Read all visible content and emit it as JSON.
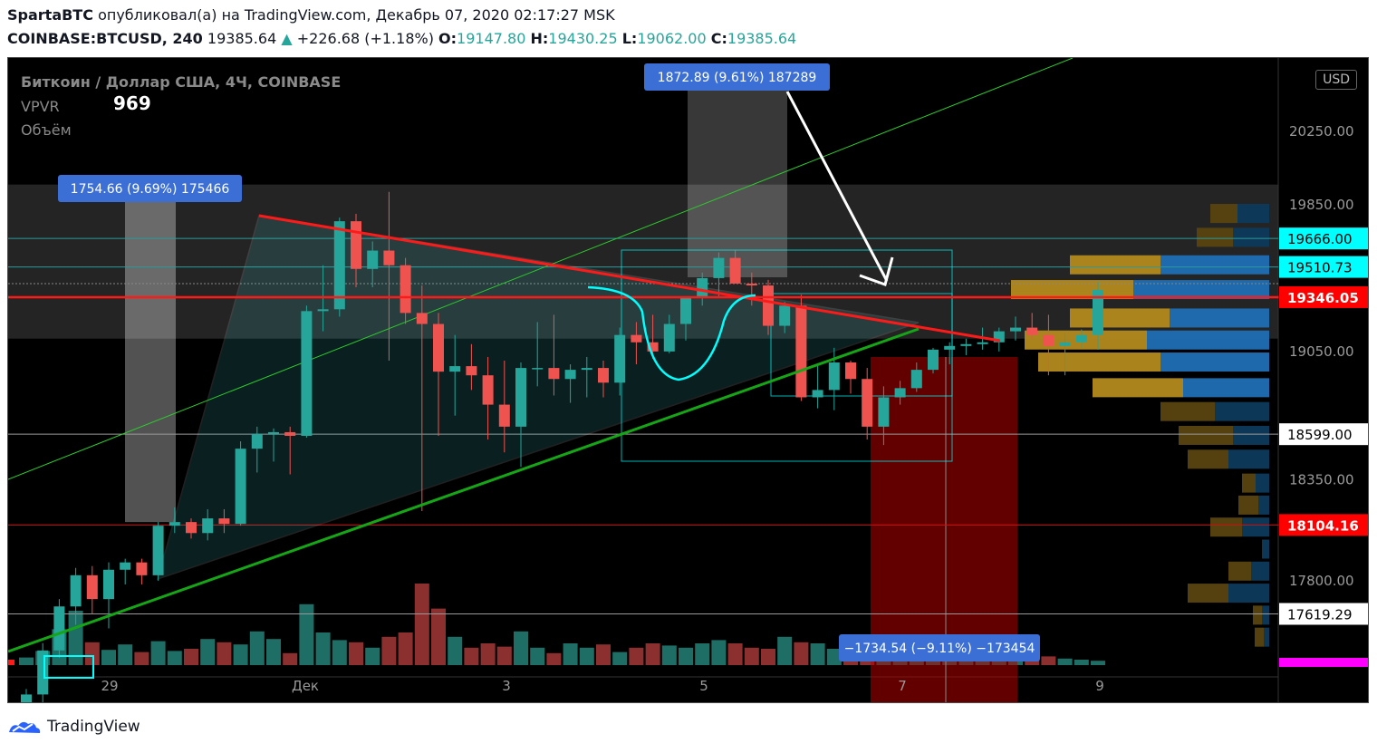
{
  "header": {
    "author": "SpartaBTC",
    "published_text": "опубликовал(а) на TradingView.com, Декабрь 07, 2020 02:17:27 MSK",
    "symbol": "COINBASE:BTCUSD, 240",
    "last": "19385.64",
    "change": "+226.68 (+1.18%)",
    "o_label": "O:",
    "o": "19147.80",
    "h_label": "H:",
    "h": "19430.25",
    "l_label": "L:",
    "l": "19062.00",
    "c_label": "C:",
    "c": "19385.64"
  },
  "legend": {
    "title": "Биткоин / Доллар США, 4Ч, COINBASE",
    "vpvr": "VPVR",
    "volume_label": "Объём",
    "volume_value": "969"
  },
  "currency": "USD",
  "footer": {
    "brand": "TradingView"
  },
  "colors": {
    "up": "#26a69a",
    "down": "#ef5350",
    "vol_up": "#1e6e66",
    "vol_down": "#8b2f2f",
    "resistance": "#ff1a1a",
    "support": "#16a516",
    "channel": "#2ecc2e",
    "measure_box": "#3b6fd6",
    "highlight_price": "#ff0000",
    "magenta": "#ff00ff",
    "cyan": "#00ffff"
  },
  "chart_data": {
    "type": "candlestick",
    "symbol": "COINBASE:BTCUSD",
    "timeframe": "4H",
    "x_ticks": [
      "29",
      "Дек",
      "3",
      "5",
      "7",
      "9"
    ],
    "y_ticks": [
      "20250.00",
      "19850.00",
      "19050.00",
      "18350.00",
      "17800.00"
    ],
    "ylim": [
      17350,
      20650
    ],
    "price_labels": [
      {
        "text": "19666.00",
        "value": 19666,
        "style": "cyan"
      },
      {
        "text": "19510.73",
        "value": 19510.73,
        "style": "cyan"
      },
      {
        "text": "19346.05",
        "value": 19346.05,
        "style": "red"
      },
      {
        "text": "18599.00",
        "value": 18599,
        "style": "white"
      },
      {
        "text": "18104.16",
        "value": 18104.16,
        "style": "red"
      },
      {
        "text": "17619.29",
        "value": 17619.29,
        "style": "white"
      }
    ],
    "annotations": [
      {
        "text": "1754.66 (9.69%) 175466"
      },
      {
        "text": "1872.89 (9.61%) 187289"
      },
      {
        "text": "−1734.54 (−9.11%) −173454"
      }
    ],
    "candles": [
      {
        "o": 17110,
        "h": 17210,
        "l": 17050,
        "c": 17180
      },
      {
        "o": 17180,
        "h": 17460,
        "l": 17120,
        "c": 17420
      },
      {
        "o": 17420,
        "h": 17700,
        "l": 17380,
        "c": 17660
      },
      {
        "o": 17660,
        "h": 17870,
        "l": 17560,
        "c": 17830
      },
      {
        "o": 17830,
        "h": 17880,
        "l": 17620,
        "c": 17700
      },
      {
        "o": 17700,
        "h": 17900,
        "l": 17540,
        "c": 17860
      },
      {
        "o": 17860,
        "h": 17920,
        "l": 17780,
        "c": 17900
      },
      {
        "o": 17900,
        "h": 17920,
        "l": 17780,
        "c": 17830
      },
      {
        "o": 17830,
        "h": 18120,
        "l": 17800,
        "c": 18100
      },
      {
        "o": 18100,
        "h": 18200,
        "l": 18060,
        "c": 18120
      },
      {
        "o": 18120,
        "h": 18140,
        "l": 18030,
        "c": 18060
      },
      {
        "o": 18060,
        "h": 18190,
        "l": 18020,
        "c": 18140
      },
      {
        "o": 18140,
        "h": 18190,
        "l": 18060,
        "c": 18110
      },
      {
        "o": 18110,
        "h": 18560,
        "l": 18100,
        "c": 18520
      },
      {
        "o": 18520,
        "h": 18640,
        "l": 18390,
        "c": 18600
      },
      {
        "o": 18600,
        "h": 18630,
        "l": 18450,
        "c": 18610
      },
      {
        "o": 18610,
        "h": 18640,
        "l": 18380,
        "c": 18590
      },
      {
        "o": 18590,
        "h": 19300,
        "l": 18580,
        "c": 19270
      },
      {
        "o": 19270,
        "h": 19520,
        "l": 19160,
        "c": 19280
      },
      {
        "o": 19280,
        "h": 19780,
        "l": 19240,
        "c": 19760
      },
      {
        "o": 19760,
        "h": 19800,
        "l": 19400,
        "c": 19500
      },
      {
        "o": 19500,
        "h": 19650,
        "l": 19400,
        "c": 19600
      },
      {
        "o": 19600,
        "h": 19920,
        "l": 19000,
        "c": 19520
      },
      {
        "o": 19520,
        "h": 19560,
        "l": 19200,
        "c": 19260
      },
      {
        "o": 19260,
        "h": 19410,
        "l": 18180,
        "c": 19200
      },
      {
        "o": 19200,
        "h": 19260,
        "l": 18590,
        "c": 18940
      },
      {
        "o": 18940,
        "h": 19140,
        "l": 18700,
        "c": 18970
      },
      {
        "o": 18970,
        "h": 19090,
        "l": 18840,
        "c": 18920
      },
      {
        "o": 18920,
        "h": 19020,
        "l": 18570,
        "c": 18760
      },
      {
        "o": 18760,
        "h": 19000,
        "l": 18500,
        "c": 18640
      },
      {
        "o": 18640,
        "h": 18990,
        "l": 18420,
        "c": 18960
      },
      {
        "o": 18960,
        "h": 19210,
        "l": 18860,
        "c": 18960
      },
      {
        "o": 18960,
        "h": 19250,
        "l": 18810,
        "c": 18900
      },
      {
        "o": 18900,
        "h": 18980,
        "l": 18770,
        "c": 18950
      },
      {
        "o": 18950,
        "h": 19020,
        "l": 18800,
        "c": 18960
      },
      {
        "o": 18960,
        "h": 19000,
        "l": 18800,
        "c": 18880
      },
      {
        "o": 18880,
        "h": 19180,
        "l": 18810,
        "c": 19140
      },
      {
        "o": 19140,
        "h": 19210,
        "l": 18980,
        "c": 19100
      },
      {
        "o": 19100,
        "h": 19250,
        "l": 19010,
        "c": 19050
      },
      {
        "o": 19050,
        "h": 19250,
        "l": 19040,
        "c": 19200
      },
      {
        "o": 19200,
        "h": 19350,
        "l": 19110,
        "c": 19350
      },
      {
        "o": 19350,
        "h": 19480,
        "l": 19300,
        "c": 19450
      },
      {
        "o": 19450,
        "h": 19590,
        "l": 19350,
        "c": 19560
      },
      {
        "o": 19560,
        "h": 19600,
        "l": 19420,
        "c": 19420
      },
      {
        "o": 19420,
        "h": 19480,
        "l": 19300,
        "c": 19410
      },
      {
        "o": 19410,
        "h": 19440,
        "l": 19140,
        "c": 19190
      },
      {
        "o": 19190,
        "h": 19320,
        "l": 19150,
        "c": 19300
      },
      {
        "o": 19300,
        "h": 19360,
        "l": 18780,
        "c": 18800
      },
      {
        "o": 18800,
        "h": 18980,
        "l": 18740,
        "c": 18840
      },
      {
        "o": 18840,
        "h": 19070,
        "l": 18730,
        "c": 18990
      },
      {
        "o": 18990,
        "h": 19000,
        "l": 18820,
        "c": 18900
      },
      {
        "o": 18900,
        "h": 18960,
        "l": 18570,
        "c": 18640
      },
      {
        "o": 18640,
        "h": 18860,
        "l": 18540,
        "c": 18800
      },
      {
        "o": 18800,
        "h": 18890,
        "l": 18760,
        "c": 18850
      },
      {
        "o": 18850,
        "h": 18990,
        "l": 18830,
        "c": 18950
      },
      {
        "o": 18950,
        "h": 19070,
        "l": 18930,
        "c": 19060
      },
      {
        "o": 19060,
        "h": 19100,
        "l": 18980,
        "c": 19080
      },
      {
        "o": 19080,
        "h": 19120,
        "l": 19030,
        "c": 19090
      },
      {
        "o": 19090,
        "h": 19180,
        "l": 19060,
        "c": 19100
      },
      {
        "o": 19100,
        "h": 19180,
        "l": 19050,
        "c": 19160
      },
      {
        "o": 19160,
        "h": 19240,
        "l": 19110,
        "c": 19180
      },
      {
        "o": 19180,
        "h": 19260,
        "l": 19120,
        "c": 19140
      },
      {
        "o": 19140,
        "h": 19250,
        "l": 18920,
        "c": 19080
      },
      {
        "o": 19080,
        "h": 19150,
        "l": 18920,
        "c": 19100
      },
      {
        "o": 19100,
        "h": 19170,
        "l": 19070,
        "c": 19140
      },
      {
        "o": 19140,
        "h": 19430,
        "l": 19060,
        "c": 19386
      }
    ],
    "volumes": [
      70,
      130,
      330,
      500,
      210,
      140,
      190,
      120,
      220,
      130,
      150,
      240,
      210,
      190,
      310,
      240,
      110,
      560,
      300,
      230,
      210,
      160,
      260,
      300,
      750,
      520,
      260,
      160,
      200,
      170,
      310,
      160,
      110,
      200,
      160,
      190,
      120,
      160,
      200,
      180,
      160,
      200,
      230,
      200,
      160,
      150,
      260,
      210,
      200,
      150,
      200,
      160,
      280,
      110,
      80,
      80,
      90,
      70,
      80,
      90,
      110,
      130,
      80,
      60,
      50,
      40
    ],
    "vpvr": [
      {
        "price": 19920,
        "blue": 0,
        "gold": 0,
        "total": 8
      },
      {
        "price": 19800,
        "blue": 35,
        "gold": 30,
        "total": 70
      },
      {
        "price": 19670,
        "blue": 40,
        "gold": 40,
        "total": 95
      },
      {
        "price": 19520,
        "blue": 120,
        "gold": 100,
        "total": 215
      },
      {
        "price": 19385,
        "blue": 150,
        "gold": 135,
        "total": 290
      },
      {
        "price": 19230,
        "blue": 110,
        "gold": 110,
        "total": 220
      },
      {
        "price": 19110,
        "blue": 135,
        "gold": 135,
        "total": 265
      },
      {
        "price": 18990,
        "blue": 120,
        "gold": 135,
        "total": 258
      },
      {
        "price": 18850,
        "blue": 95,
        "gold": 100,
        "total": 193
      },
      {
        "price": 18720,
        "blue": 60,
        "gold": 60,
        "total": 120
      },
      {
        "price": 18590,
        "blue": 40,
        "gold": 60,
        "total": 100
      },
      {
        "price": 18460,
        "blue": 45,
        "gold": 45,
        "total": 88
      },
      {
        "price": 18330,
        "blue": 15,
        "gold": 15,
        "total": 32
      },
      {
        "price": 18210,
        "blue": 12,
        "gold": 22,
        "total": 35
      },
      {
        "price": 18090,
        "blue": 30,
        "gold": 35,
        "total": 66
      },
      {
        "price": 17970,
        "blue": 8,
        "gold": 0,
        "total": 8
      },
      {
        "price": 17850,
        "blue": 20,
        "gold": 25,
        "total": 45
      },
      {
        "price": 17730,
        "blue": 45,
        "gold": 45,
        "total": 90
      },
      {
        "price": 17610,
        "blue": 8,
        "gold": 10,
        "total": 18
      },
      {
        "price": 17490,
        "blue": 6,
        "gold": 10,
        "total": 16
      }
    ]
  }
}
